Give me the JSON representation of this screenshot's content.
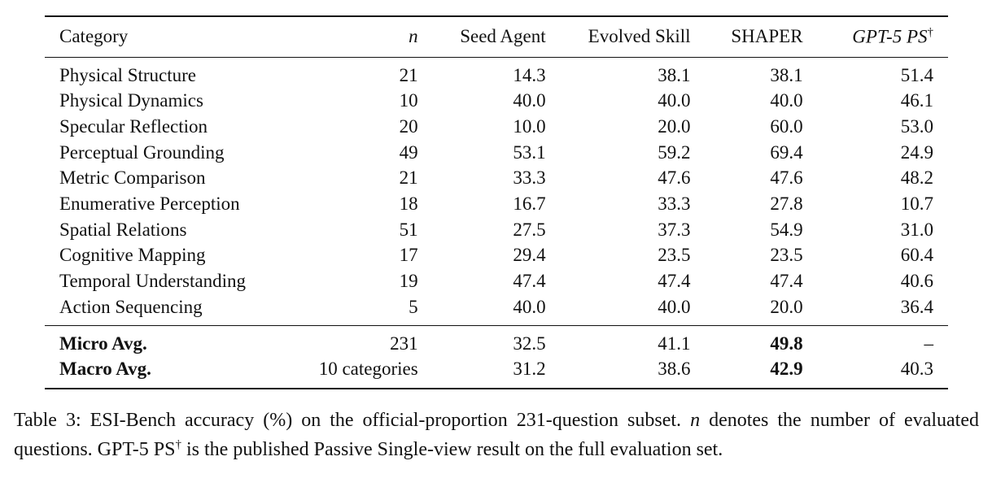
{
  "table": {
    "headers": {
      "category": "Category",
      "n": "n",
      "seed_agent": "Seed Agent",
      "evolved_skill": "Evolved Skill",
      "shaper": "SHAPER",
      "gpt5_ps": "GPT-5 PS",
      "gpt5_ps_mark": "†"
    },
    "rows": [
      {
        "category": "Physical Structure",
        "n": "21",
        "seed_agent": "14.3",
        "evolved_skill": "38.1",
        "shaper": "38.1",
        "gpt5_ps": "51.4"
      },
      {
        "category": "Physical Dynamics",
        "n": "10",
        "seed_agent": "40.0",
        "evolved_skill": "40.0",
        "shaper": "40.0",
        "gpt5_ps": "46.1"
      },
      {
        "category": "Specular Reflection",
        "n": "20",
        "seed_agent": "10.0",
        "evolved_skill": "20.0",
        "shaper": "60.0",
        "gpt5_ps": "53.0"
      },
      {
        "category": "Perceptual Grounding",
        "n": "49",
        "seed_agent": "53.1",
        "evolved_skill": "59.2",
        "shaper": "69.4",
        "gpt5_ps": "24.9"
      },
      {
        "category": "Metric Comparison",
        "n": "21",
        "seed_agent": "33.3",
        "evolved_skill": "47.6",
        "shaper": "47.6",
        "gpt5_ps": "48.2"
      },
      {
        "category": "Enumerative Perception",
        "n": "18",
        "seed_agent": "16.7",
        "evolved_skill": "33.3",
        "shaper": "27.8",
        "gpt5_ps": "10.7"
      },
      {
        "category": "Spatial Relations",
        "n": "51",
        "seed_agent": "27.5",
        "evolved_skill": "37.3",
        "shaper": "54.9",
        "gpt5_ps": "31.0"
      },
      {
        "category": "Cognitive Mapping",
        "n": "17",
        "seed_agent": "29.4",
        "evolved_skill": "23.5",
        "shaper": "23.5",
        "gpt5_ps": "60.4"
      },
      {
        "category": "Temporal Understanding",
        "n": "19",
        "seed_agent": "47.4",
        "evolved_skill": "47.4",
        "shaper": "47.4",
        "gpt5_ps": "40.6"
      },
      {
        "category": "Action Sequencing",
        "n": "5",
        "seed_agent": "40.0",
        "evolved_skill": "40.0",
        "shaper": "20.0",
        "gpt5_ps": "36.4"
      }
    ],
    "summary": [
      {
        "category": "Micro Avg.",
        "n": "231",
        "seed_agent": "32.5",
        "evolved_skill": "41.1",
        "shaper": "49.8",
        "gpt5_ps": "–"
      },
      {
        "category": "Macro Avg.",
        "n": "10 categories",
        "seed_agent": "31.2",
        "evolved_skill": "38.6",
        "shaper": "42.9",
        "gpt5_ps": "40.3"
      }
    ]
  },
  "caption": {
    "part1": "Table 3: ESI-Bench accuracy (%) on the official-proportion 231-question subset. ",
    "n_symbol": "n",
    "part2": " denotes the number of evaluated questions. GPT-5 PS",
    "dagger": "†",
    "part3": " is the published Passive Single-view result on the full evaluation set."
  }
}
